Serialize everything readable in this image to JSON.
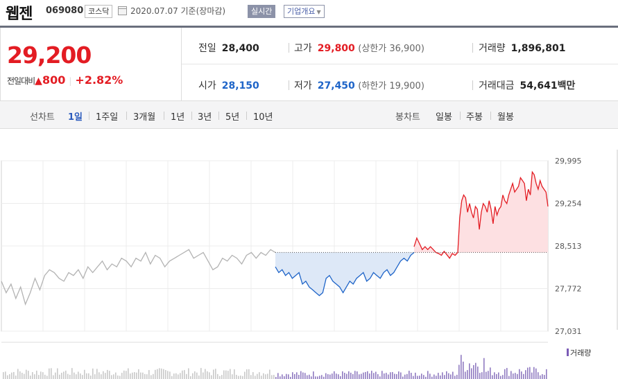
{
  "header": {
    "company_name": "웹젠",
    "stock_code": "069080",
    "market": "코스닥",
    "date_text": "2020.07.07  기준(장마감)",
    "realtime_button": "실시간",
    "company_info_button": "기업개요"
  },
  "summary": {
    "current_price": "29,200",
    "change_label": "전일대비",
    "change_amount": "800",
    "change_percent": "+2.82%",
    "stats": {
      "prev_close_label": "전일",
      "prev_close": "28,400",
      "high_label": "고가",
      "high": "29,800",
      "upper_limit": "(상한가 36,900)",
      "volume_label": "거래량",
      "volume": "1,896,801",
      "open_label": "시가",
      "open": "28,150",
      "low_label": "저가",
      "low": "27,450",
      "lower_limit": "(하한가 19,900)",
      "trade_value_label": "거래대금",
      "trade_value": "54,641",
      "trade_value_unit": "백만"
    }
  },
  "tabs": {
    "line_chart_label": "선차트",
    "periods": [
      "1일",
      "1주일",
      "3개월",
      "1년",
      "3년",
      "5년",
      "10년"
    ],
    "active_period": "1일",
    "candle_chart_label": "봉차트",
    "candle_periods": [
      "일봉",
      "주봉",
      "월봉"
    ]
  },
  "colors": {
    "up": "#e31c23",
    "down": "#1e64c8",
    "prev_line": "#b3b3b3"
  },
  "chart_data": {
    "type": "line",
    "y_axis_ticks": [
      "29,995",
      "29,254",
      "28,513",
      "27,772",
      "27,031"
    ],
    "ylim": [
      27031,
      29995
    ],
    "baseline": 28400,
    "volume_label": "거래량",
    "series": [
      {
        "values": [
          27900,
          27700,
          27850,
          27600,
          27800,
          27500,
          27700,
          27950,
          27750,
          28000,
          28100,
          28050,
          27950,
          27900,
          28050,
          28000,
          28100,
          27950,
          28150,
          28050,
          28150,
          28250,
          28100,
          28200,
          28150,
          28300,
          28250,
          28150,
          28300,
          28250,
          28400,
          28200,
          28350,
          28300,
          28150,
          28250,
          28300,
          28350,
          28400,
          28450,
          28300,
          28350,
          28400,
          28250,
          28100,
          28150,
          28300,
          28250,
          28350,
          28300,
          28200,
          28350,
          28400,
          28300,
          28400,
          28350,
          28450,
          28400
        ]
      },
      {
        "values": [
          28150,
          28050,
          28100,
          28000,
          28050,
          27950,
          28000,
          28050,
          27850,
          27900,
          27800,
          27750,
          27700,
          27650,
          27700,
          27950,
          28000,
          27900,
          27850,
          27800,
          27700,
          27800,
          27900,
          27850,
          27950,
          28000,
          28050,
          27900,
          27950,
          28050,
          28000,
          27950,
          28050,
          28100,
          28000,
          28050,
          28150,
          28250,
          28300,
          28250,
          28350,
          28400
        ]
      },
      {
        "values": [
          28500,
          28650,
          28550,
          28450,
          28500,
          28450,
          28500,
          28450,
          28400,
          28380,
          28350,
          28420,
          28360,
          28300,
          28380,
          28350,
          28400
        ]
      },
      {
        "values": [
          28400,
          29000,
          29300,
          29400,
          29350,
          29100,
          29250,
          29100,
          29000,
          29200,
          29150,
          28800,
          29100,
          29250,
          29200,
          29100,
          29300,
          29150,
          28900,
          29200,
          29050,
          29150,
          29200,
          29400,
          29300,
          29250,
          29400,
          29500,
          29600,
          29450,
          29500,
          29550,
          29700,
          29650,
          29600,
          29300,
          29500,
          29400,
          29800,
          29750,
          29600,
          29500,
          29650,
          29550,
          29500,
          29450,
          29200
        ]
      }
    ]
  }
}
